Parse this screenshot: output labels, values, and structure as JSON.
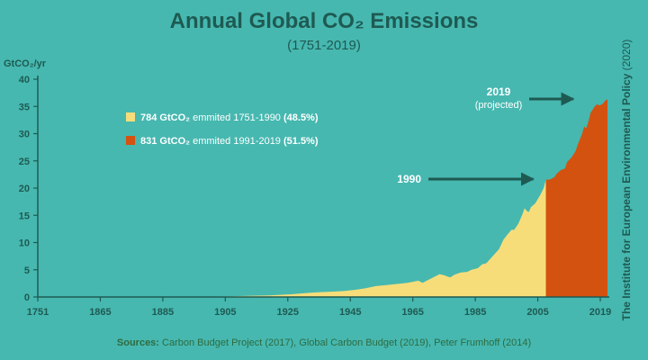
{
  "title": "Annual Global CO₂ Emissions",
  "subtitle": "(1751-2019)",
  "credit": {
    "bold": "The Institute for European Environmental Policy",
    "rest": " (2020)"
  },
  "sources": {
    "label": "Sources:",
    "text": " Carbon Budget Project (2017), Global Carbon Budget (2019), Peter Frumhoff (2014)"
  },
  "colors": {
    "background": "#46b8b0",
    "pre1990": "#f7dd7a",
    "post1990": "#d4520f",
    "axis": "#1e5a52",
    "arrow": "#1e5a52"
  },
  "chart_data": {
    "type": "area",
    "ylabel": "GtCO₂/yr",
    "ylim": [
      0,
      40
    ],
    "yticks": [
      0,
      5,
      10,
      15,
      20,
      25,
      30,
      35,
      40
    ],
    "xlim": [
      1751,
      2019
    ],
    "xtick_labels": [
      "1751",
      "1865",
      "1885",
      "1905",
      "1925",
      "1945",
      "1965",
      "1985",
      "2005",
      "2019"
    ],
    "legend": [
      {
        "bold": "784 GtCO₂",
        "text": " emmited 1751-1990 ",
        "pct": "(48.5%)",
        "color": "#f7dd7a"
      },
      {
        "bold": "831 GtCO₂",
        "text": " emmited 1991-2019 ",
        "pct": "(51.5%)",
        "color": "#d4520f"
      }
    ],
    "split_year": 1990,
    "annotations": [
      {
        "label": "1990",
        "sub": "",
        "x": 1990,
        "y": 21.5
      },
      {
        "label": "2019",
        "sub": "(projected)",
        "x": 2019,
        "y": 36.3
      }
    ],
    "series": [
      {
        "x": [
          1751,
          1790,
          1820,
          1840,
          1850,
          1860,
          1870,
          1880,
          1885,
          1890,
          1895,
          1900,
          1905,
          1910,
          1915,
          1920,
          1925,
          1930,
          1932,
          1935,
          1940,
          1942,
          1945,
          1947,
          1950,
          1953,
          1955,
          1958,
          1960,
          1962,
          1965,
          1968,
          1970,
          1972,
          1974,
          1975,
          1977,
          1979,
          1980,
          1981,
          1982,
          1983,
          1985,
          1987,
          1989,
          1990,
          1992,
          1994,
          1995,
          1997,
          1999,
          2000,
          2002,
          2004,
          2005,
          2007,
          2008,
          2009,
          2010,
          2011,
          2012,
          2013,
          2014,
          2015,
          2016,
          2017,
          2018,
          2019
        ],
        "y": [
          0.01,
          0.03,
          0.05,
          0.1,
          0.2,
          0.3,
          0.5,
          0.8,
          0.9,
          1.0,
          1.1,
          1.3,
          1.6,
          2.0,
          2.2,
          2.4,
          2.6,
          3.0,
          2.6,
          3.2,
          4.2,
          4.0,
          3.6,
          4.1,
          4.5,
          4.6,
          5.0,
          5.3,
          6.0,
          6.2,
          7.5,
          8.8,
          10.5,
          11.5,
          12.4,
          12.3,
          13.4,
          15.2,
          16.3,
          15.8,
          15.6,
          16.5,
          17.2,
          18.5,
          20.0,
          21.5,
          21.6,
          22.0,
          22.6,
          23.3,
          23.6,
          24.8,
          25.6,
          26.8,
          28.0,
          29.9,
          31.3,
          31.0,
          32.2,
          33.8,
          34.4,
          35.0,
          35.4,
          35.2,
          35.3,
          35.6,
          36.1,
          36.3
        ]
      }
    ]
  }
}
